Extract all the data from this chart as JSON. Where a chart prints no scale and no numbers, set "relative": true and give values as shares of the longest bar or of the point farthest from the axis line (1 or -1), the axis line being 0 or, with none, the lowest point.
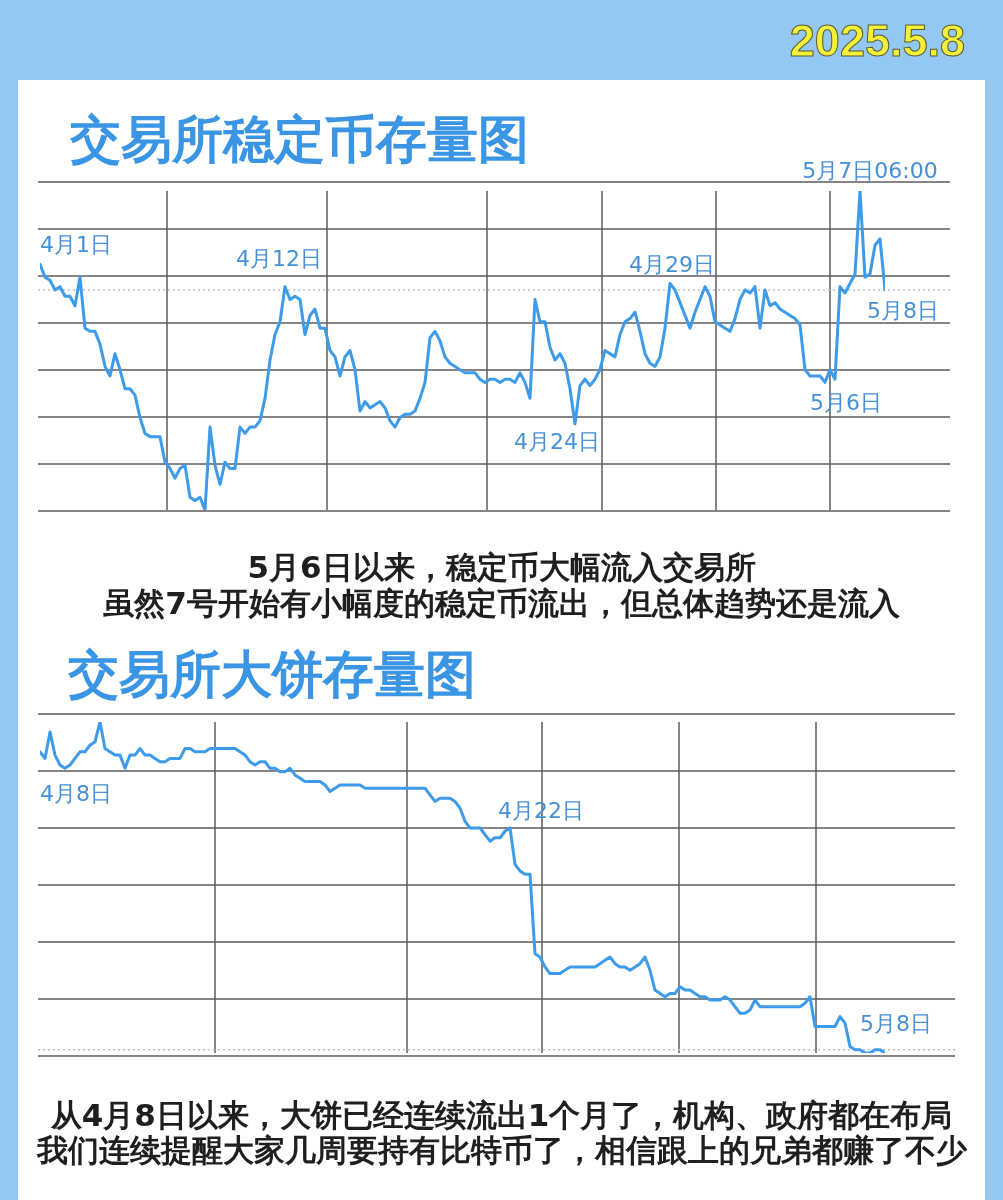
{
  "chart_data": [
    {
      "type": "line",
      "title": "交易所稳定币存量图",
      "relative": true,
      "grid": true,
      "marker": "none",
      "line_style": "solid",
      "color": "#3d9be9",
      "categories": [
        null,
        null,
        null,
        null,
        null,
        null,
        null,
        null,
        null,
        null,
        null,
        null,
        null,
        null,
        null,
        null,
        null,
        null,
        null,
        null,
        null,
        null,
        null,
        null,
        null,
        null,
        null,
        null,
        null,
        null,
        null,
        null,
        null,
        null,
        null,
        null,
        null,
        null,
        null,
        null,
        null,
        null,
        null,
        null,
        null,
        null,
        null,
        null,
        null,
        null,
        null,
        null,
        null,
        null,
        null,
        null,
        null,
        null,
        null,
        null,
        null,
        null,
        null,
        null,
        null,
        null,
        null,
        null,
        null,
        null,
        null,
        null,
        null,
        null,
        null,
        null,
        null,
        null,
        null,
        null,
        null,
        null,
        null,
        null,
        null,
        null,
        null,
        null,
        null,
        null,
        null,
        null,
        null,
        null,
        null,
        null,
        null,
        null,
        null,
        null,
        null,
        null,
        null,
        null,
        null,
        null,
        null,
        null,
        null,
        null,
        null,
        null,
        null,
        null,
        null,
        null,
        null,
        null,
        null,
        null,
        null,
        null,
        null,
        null,
        null,
        null,
        null,
        null,
        null,
        null,
        null,
        null,
        null,
        null,
        null,
        null,
        null,
        null,
        null,
        null,
        null,
        null,
        null,
        null,
        null,
        null,
        null,
        null,
        null,
        null,
        null,
        null,
        null,
        null,
        null,
        null,
        null,
        null,
        null,
        null,
        null,
        null,
        null,
        null,
        null,
        null,
        null,
        null,
        null,
        null
      ],
      "values": [
        0.77,
        0.73,
        0.72,
        0.69,
        0.7,
        0.67,
        0.67,
        0.64,
        0.73,
        0.57,
        0.56,
        0.56,
        0.52,
        0.45,
        0.42,
        0.49,
        0.44,
        0.38,
        0.38,
        0.36,
        0.29,
        0.24,
        0.23,
        0.23,
        0.23,
        0.15,
        0.13,
        0.1,
        0.13,
        0.14,
        0.04,
        0.03,
        0.04,
        0,
        0.26,
        0.14,
        0.08,
        0.15,
        0.13,
        0.13,
        0.26,
        0.24,
        0.26,
        0.26,
        0.28,
        0.35,
        0.47,
        0.55,
        0.59,
        0.7,
        0.66,
        0.67,
        0.66,
        0.55,
        0.61,
        0.63,
        0.57,
        0.57,
        0.5,
        0.48,
        0.42,
        0.48,
        0.5,
        0.44,
        0.31,
        0.34,
        0.32,
        0.33,
        0.34,
        0.32,
        0.28,
        0.26,
        0.29,
        0.3,
        0.3,
        0.31,
        0.35,
        0.4,
        0.54,
        0.56,
        0.53,
        0.48,
        0.46,
        0.45,
        0.44,
        0.43,
        0.43,
        0.43,
        0.41,
        0.4,
        0.41,
        0.41,
        0.4,
        0.41,
        0.41,
        0.4,
        0.43,
        0.4,
        0.35,
        0.66,
        0.59,
        0.59,
        0.51,
        0.47,
        0.49,
        0.46,
        0.38,
        0.27,
        0.39,
        0.41,
        0.39,
        0.41,
        0.44,
        0.5,
        0.49,
        0.48,
        0.55,
        0.59,
        0.6,
        0.62,
        0.56,
        0.49,
        0.46,
        0.45,
        0.48,
        0.57,
        0.71,
        0.69,
        0.65,
        0.61,
        0.57,
        0.62,
        0.66,
        0.7,
        0.67,
        0.59,
        0.58,
        0.57,
        0.56,
        0.6,
        0.66,
        0.69,
        0.68,
        0.7,
        0.57,
        0.69,
        0.64,
        0.65,
        0.63,
        0.62,
        0.61,
        0.6,
        0.58,
        0.44,
        0.42,
        0.42,
        0.42,
        0.4,
        0.44,
        0.41,
        0.7,
        0.68,
        0.71,
        0.74,
        1,
        0.73,
        0.74,
        0.83,
        0.85,
        0.69
      ],
      "ref_lines": [
        {
          "axis": "y",
          "value": 0.69,
          "color": "#b4c4d4",
          "line_style": "dotted"
        }
      ],
      "annotations": [
        "2025.5.8",
        "4月1日",
        "4月12日",
        "4月24日",
        "4月29日",
        "5月6日",
        "5月7日06:00",
        "5月8日",
        "5月6日以来，稳定币大幅流入交易所",
        "虽然7号开始有小幅度的稳定币流出，但总体趋势还是流入"
      ]
    },
    {
      "type": "line",
      "title": "交易所大饼存量图",
      "relative": true,
      "grid": true,
      "marker": "none",
      "line_style": "solid",
      "color": "#3d9be9",
      "categories": [
        null,
        null,
        null,
        null,
        null,
        null,
        null,
        null,
        null,
        null,
        null,
        null,
        null,
        null,
        null,
        null,
        null,
        null,
        null,
        null,
        null,
        null,
        null,
        null,
        null,
        null,
        null,
        null,
        null,
        null,
        null,
        null,
        null,
        null,
        null,
        null,
        null,
        null,
        null,
        null,
        null,
        null,
        null,
        null,
        null,
        null,
        null,
        null,
        null,
        null,
        null,
        null,
        null,
        null,
        null,
        null,
        null,
        null,
        null,
        null,
        null,
        null,
        null,
        null,
        null,
        null,
        null,
        null,
        null,
        null,
        null,
        null,
        null,
        null,
        null,
        null,
        null,
        null,
        null,
        null,
        null,
        null,
        null,
        null,
        null,
        null,
        null,
        null,
        null,
        null,
        null,
        null,
        null,
        null,
        null,
        null,
        null,
        null,
        null,
        null,
        null,
        null,
        null,
        null,
        null,
        null,
        null,
        null,
        null,
        null,
        null,
        null,
        null,
        null,
        null,
        null,
        null,
        null,
        null,
        null,
        null,
        null,
        null,
        null,
        null,
        null,
        null,
        null,
        null,
        null,
        null,
        null,
        null,
        null,
        null,
        null,
        null,
        null,
        null,
        null,
        null,
        null,
        null,
        null,
        null,
        null,
        null,
        null,
        null,
        null,
        null,
        null,
        null,
        null,
        null,
        null,
        null,
        null,
        null,
        null,
        null,
        null,
        null,
        null,
        null,
        null,
        null,
        null,
        null,
        null
      ],
      "values": [
        0.91,
        0.89,
        0.97,
        0.9,
        0.87,
        0.86,
        0.87,
        0.89,
        0.91,
        0.91,
        0.93,
        0.94,
        1,
        0.92,
        0.91,
        0.9,
        0.9,
        0.86,
        0.9,
        0.9,
        0.92,
        0.9,
        0.9,
        0.89,
        0.88,
        0.88,
        0.89,
        0.89,
        0.89,
        0.92,
        0.92,
        0.91,
        0.91,
        0.91,
        0.92,
        0.92,
        0.92,
        0.92,
        0.92,
        0.92,
        0.91,
        0.9,
        0.88,
        0.87,
        0.88,
        0.88,
        0.86,
        0.86,
        0.85,
        0.85,
        0.86,
        0.84,
        0.83,
        0.82,
        0.82,
        0.82,
        0.82,
        0.81,
        0.79,
        0.8,
        0.81,
        0.81,
        0.81,
        0.81,
        0.81,
        0.8,
        0.8,
        0.8,
        0.8,
        0.8,
        0.8,
        0.8,
        0.8,
        0.8,
        0.8,
        0.8,
        0.8,
        0.8,
        0.78,
        0.76,
        0.77,
        0.77,
        0.77,
        0.76,
        0.74,
        0.7,
        0.68,
        0.68,
        0.68,
        0.66,
        0.64,
        0.65,
        0.65,
        0.67,
        0.68,
        0.57,
        0.55,
        0.54,
        0.54,
        0.3,
        0.29,
        0.26,
        0.24,
        0.24,
        0.24,
        0.25,
        0.26,
        0.26,
        0.26,
        0.26,
        0.26,
        0.26,
        0.27,
        0.28,
        0.29,
        0.27,
        0.26,
        0.26,
        0.25,
        0.26,
        0.27,
        0.29,
        0.25,
        0.19,
        0.18,
        0.17,
        0.18,
        0.18,
        0.2,
        0.19,
        0.19,
        0.18,
        0.17,
        0.17,
        0.16,
        0.16,
        0.16,
        0.17,
        0.16,
        0.14,
        0.12,
        0.12,
        0.13,
        0.16,
        0.14,
        0.14,
        0.14,
        0.14,
        0.14,
        0.14,
        0.14,
        0.14,
        0.14,
        0.15,
        0.17,
        0.08,
        0.08,
        0.08,
        0.08,
        0.08,
        0.11,
        0.09,
        0.02,
        0.01,
        0.01,
        0,
        0,
        0.01,
        0.01,
        0
      ],
      "ref_lines": [
        {
          "axis": "y",
          "value": 0.01,
          "color": "#b4c4d4",
          "line_style": "dotted"
        }
      ],
      "annotations": [
        "4月8日",
        "4月22日",
        "5月8日",
        "从4月8日以来，大饼已经连续流出1个月了，机构、政府都在布局",
        "我们连续提醒大家几周要持有比特币了，相信跟上的兄弟都赚了不少"
      ]
    }
  ]
}
